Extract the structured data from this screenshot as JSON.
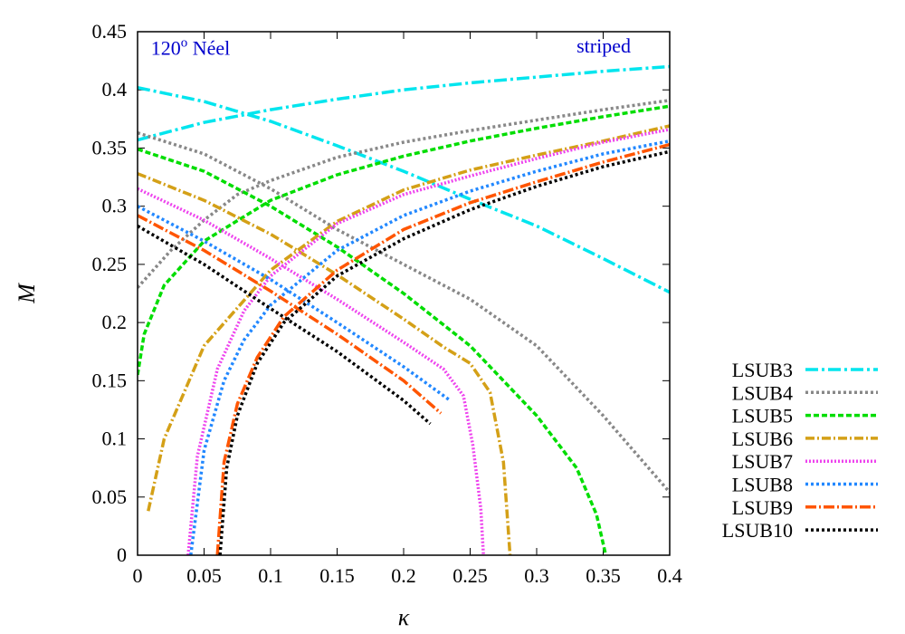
{
  "chart_data": {
    "type": "line",
    "title": "",
    "xlabel": "κ",
    "ylabel": "M",
    "xlim": [
      0,
      0.4
    ],
    "ylim": [
      0,
      0.45
    ],
    "xticks": [
      0,
      0.05,
      0.1,
      0.15,
      0.2,
      0.25,
      0.3,
      0.35,
      0.4
    ],
    "yticks": [
      0,
      0.05,
      0.1,
      0.15,
      0.2,
      0.25,
      0.3,
      0.35,
      0.4,
      0.45
    ],
    "grid": false,
    "legend_position": "outside-right-bottom",
    "annotations": [
      {
        "base": "120",
        "sup": "o",
        "rest": " Néel",
        "x": 0.01,
        "y": 0.43,
        "color": "#0000cc"
      },
      {
        "text": "striped",
        "x": 0.33,
        "y": 0.432,
        "color": "#0000cc"
      }
    ],
    "series": [
      {
        "name": "LSUB3",
        "color": "#00e5ee",
        "dash": "14,4,3,4",
        "branches": [
          {
            "x": [
              0,
              0.05,
              0.1,
              0.15,
              0.2,
              0.25,
              0.3,
              0.35,
              0.4
            ],
            "y": [
              0.402,
              0.39,
              0.373,
              0.352,
              0.33,
              0.306,
              0.283,
              0.255,
              0.226
            ]
          },
          {
            "x": [
              0,
              0.05,
              0.1,
              0.15,
              0.2,
              0.25,
              0.3,
              0.35,
              0.4
            ],
            "y": [
              0.357,
              0.372,
              0.383,
              0.392,
              0.4,
              0.406,
              0.411,
              0.416,
              0.42
            ]
          }
        ]
      },
      {
        "name": "LSUB4",
        "color": "#888888",
        "dash": "3,3",
        "branches": [
          {
            "x": [
              0,
              0.05,
              0.1,
              0.15,
              0.2,
              0.25,
              0.3,
              0.35,
              0.4
            ],
            "y": [
              0.363,
              0.345,
              0.315,
              0.28,
              0.25,
              0.22,
              0.18,
              0.12,
              0.054
            ]
          },
          {
            "x": [
              0,
              0.025,
              0.05,
              0.075,
              0.1,
              0.15,
              0.2,
              0.25,
              0.3,
              0.35,
              0.4
            ],
            "y": [
              0.23,
              0.262,
              0.288,
              0.31,
              0.322,
              0.342,
              0.355,
              0.365,
              0.374,
              0.383,
              0.391
            ]
          }
        ]
      },
      {
        "name": "LSUB5",
        "color": "#00dd00",
        "dash": "6,3",
        "branches": [
          {
            "x": [
              0,
              0.05,
              0.1,
              0.15,
              0.2,
              0.25,
              0.3,
              0.33,
              0.345,
              0.352
            ],
            "y": [
              0.349,
              0.33,
              0.3,
              0.265,
              0.225,
              0.18,
              0.12,
              0.075,
              0.035,
              0
            ]
          },
          {
            "x": [
              0,
              0.005,
              0.02,
              0.05,
              0.1,
              0.15,
              0.2,
              0.25,
              0.3,
              0.35,
              0.4
            ],
            "y": [
              0.155,
              0.19,
              0.232,
              0.27,
              0.305,
              0.327,
              0.343,
              0.356,
              0.367,
              0.377,
              0.386
            ]
          }
        ]
      },
      {
        "name": "LSUB6",
        "color": "#d4a017",
        "dash": "10,3,2,3",
        "branches": [
          {
            "x": [
              0,
              0.05,
              0.1,
              0.15,
              0.2,
              0.23,
              0.25,
              0.265,
              0.275,
              0.28
            ],
            "y": [
              0.328,
              0.305,
              0.276,
              0.241,
              0.203,
              0.179,
              0.165,
              0.14,
              0.08,
              0
            ]
          },
          {
            "x": [
              0.008,
              0.02,
              0.05,
              0.1,
              0.15,
              0.2,
              0.25,
              0.3,
              0.35,
              0.4
            ],
            "y": [
              0.038,
              0.1,
              0.18,
              0.245,
              0.287,
              0.314,
              0.331,
              0.344,
              0.356,
              0.369
            ]
          }
        ]
      },
      {
        "name": "LSUB7",
        "color": "#ee44ee",
        "dash": "2,2",
        "branches": [
          {
            "x": [
              0,
              0.05,
              0.1,
              0.15,
              0.2,
              0.23,
              0.245,
              0.252,
              0.258,
              0.26
            ],
            "y": [
              0.315,
              0.288,
              0.255,
              0.22,
              0.183,
              0.16,
              0.137,
              0.095,
              0.04,
              0
            ]
          },
          {
            "x": [
              0.038,
              0.045,
              0.06,
              0.08,
              0.1,
              0.15,
              0.2,
              0.25,
              0.3,
              0.35,
              0.4
            ],
            "y": [
              0,
              0.085,
              0.16,
              0.21,
              0.24,
              0.285,
              0.31,
              0.326,
              0.341,
              0.355,
              0.366
            ]
          }
        ]
      },
      {
        "name": "LSUB8",
        "color": "#2288ff",
        "dash": "3,3",
        "branches": [
          {
            "x": [
              0,
              0.05,
              0.1,
              0.15,
              0.2,
              0.235
            ],
            "y": [
              0.3,
              0.27,
              0.237,
              0.2,
              0.162,
              0.133
            ]
          },
          {
            "x": [
              0.04,
              0.05,
              0.065,
              0.08,
              0.1,
              0.15,
              0.2,
              0.25,
              0.3,
              0.35,
              0.4
            ],
            "y": [
              0,
              0.09,
              0.15,
              0.185,
              0.215,
              0.262,
              0.292,
              0.313,
              0.33,
              0.345,
              0.356
            ]
          }
        ]
      },
      {
        "name": "LSUB9",
        "color": "#ff5500",
        "dash": "12,3,2,3",
        "branches": [
          {
            "x": [
              0,
              0.05,
              0.1,
              0.15,
              0.2,
              0.228
            ],
            "y": [
              0.292,
              0.262,
              0.227,
              0.19,
              0.15,
              0.122
            ]
          },
          {
            "x": [
              0.06,
              0.065,
              0.075,
              0.09,
              0.11,
              0.15,
              0.2,
              0.25,
              0.3,
              0.35,
              0.4
            ],
            "y": [
              0,
              0.08,
              0.13,
              0.17,
              0.205,
              0.245,
              0.28,
              0.303,
              0.321,
              0.338,
              0.353
            ]
          }
        ]
      },
      {
        "name": "LSUB10",
        "color": "#000000",
        "dash": "3,3",
        "branches": [
          {
            "x": [
              0,
              0.05,
              0.1,
              0.15,
              0.2,
              0.22
            ],
            "y": [
              0.283,
              0.25,
              0.212,
              0.175,
              0.133,
              0.113
            ]
          },
          {
            "x": [
              0.062,
              0.067,
              0.075,
              0.09,
              0.11,
              0.15,
              0.2,
              0.25,
              0.3,
              0.35,
              0.4
            ],
            "y": [
              0,
              0.075,
              0.12,
              0.165,
              0.2,
              0.24,
              0.272,
              0.297,
              0.317,
              0.334,
              0.347
            ]
          }
        ]
      }
    ]
  }
}
